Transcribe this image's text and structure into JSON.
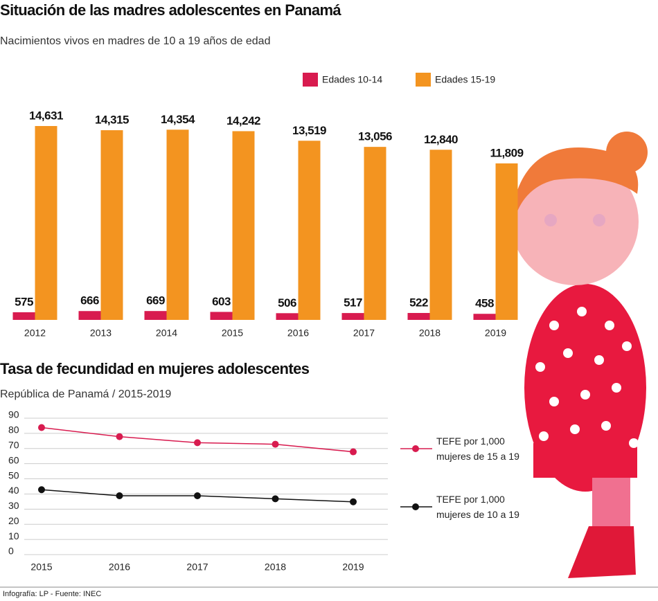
{
  "chart_data": [
    {
      "type": "bar",
      "title": "Situación de las madres adolescentes en Panamá",
      "subtitle": "Nacimientos vivos en madres de 10 a 19 años de edad",
      "categories": [
        "2012",
        "2013",
        "2014",
        "2015",
        "2016",
        "2017",
        "2018",
        "2019"
      ],
      "series": [
        {
          "name": "Edades 10-14",
          "color": "#d81b4f",
          "values": [
            575,
            666,
            669,
            603,
            506,
            517,
            522,
            458
          ]
        },
        {
          "name": "Edades 15-19",
          "color": "#f39420",
          "values": [
            14631,
            14315,
            14354,
            14242,
            13519,
            13056,
            12840,
            11809
          ],
          "value_labels": [
            "14,631",
            "14,315",
            "14,354",
            "14,242",
            "13,519",
            "13,056",
            "12,840",
            "11,809"
          ]
        }
      ]
    },
    {
      "type": "line",
      "title": "Tasa de fecundidad en mujeres adolescentes",
      "subtitle": "República de Panamá / 2015-2019",
      "x": [
        2015,
        2016,
        2017,
        2018,
        2019
      ],
      "xlim": [
        2015,
        2019
      ],
      "xticks": [
        2015,
        2016,
        2017,
        2018,
        2019
      ],
      "ylim": [
        0,
        90
      ],
      "yticks": [
        0,
        10,
        20,
        30,
        40,
        50,
        60,
        70,
        80,
        90
      ],
      "grid": true,
      "series": [
        {
          "name": "TEFE por 1,000 mujeres de 15 a 19",
          "color": "#d81b4f",
          "values": [
            82,
            76,
            72,
            71,
            66
          ]
        },
        {
          "name": "TEFE por 1,000 mujeres de 10 a 19",
          "color": "#111111",
          "values": [
            41,
            37,
            37,
            35,
            33
          ]
        }
      ]
    }
  ],
  "footer": "Infografía: LP - Fuente: INEC"
}
